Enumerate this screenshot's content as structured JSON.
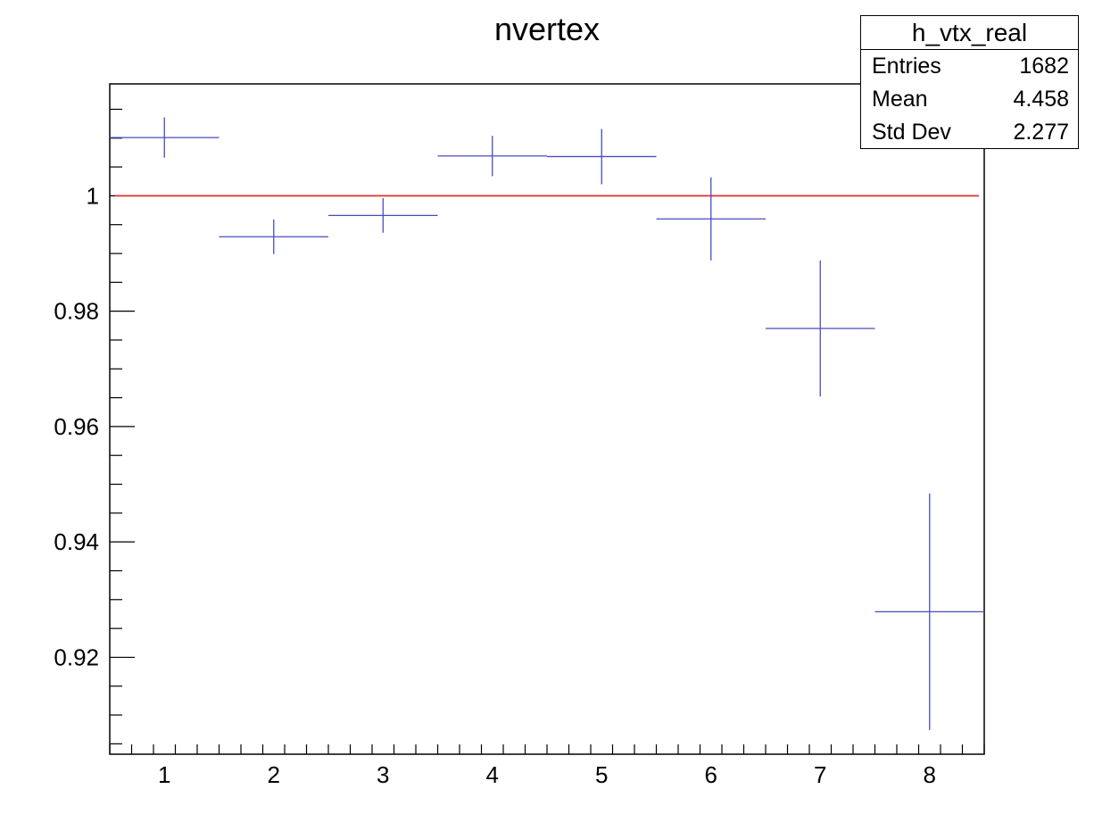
{
  "chart_data": {
    "type": "scatter",
    "title": "nvertex",
    "xlabel": "",
    "ylabel": "",
    "xlim": [
      0.5,
      8.5
    ],
    "ylim": [
      0.9032,
      1.0194
    ],
    "x_ticks": [
      1,
      2,
      3,
      4,
      5,
      6,
      7,
      8
    ],
    "y_ticks": [
      0.92,
      0.94,
      0.96,
      0.98,
      1
    ],
    "y_tick_labels": [
      "0.92",
      "0.94",
      "0.96",
      "0.98",
      "1"
    ],
    "series": [
      {
        "color": "#4b4bbf",
        "x": [
          1,
          2,
          3,
          4,
          5,
          6,
          7,
          8
        ],
        "x_err": [
          0.5,
          0.5,
          0.5,
          0.5,
          0.5,
          0.5,
          0.5,
          0.5
        ],
        "y": [
          1.0101,
          0.9929,
          0.9966,
          1.0069,
          1.0068,
          0.996,
          0.977,
          0.9279
        ],
        "y_err": [
          0.0035,
          0.003,
          0.003,
          0.0035,
          0.0048,
          0.0072,
          0.0118,
          0.0205
        ]
      }
    ],
    "reference_line": {
      "y": 1,
      "color": "#e03030"
    },
    "grid": false
  },
  "stats": {
    "title": "h_vtx_real",
    "rows": [
      {
        "key": "Entries",
        "value": "1682"
      },
      {
        "key": "Mean",
        "value": "4.458"
      },
      {
        "key": "Std Dev",
        "value": "2.277"
      }
    ]
  }
}
